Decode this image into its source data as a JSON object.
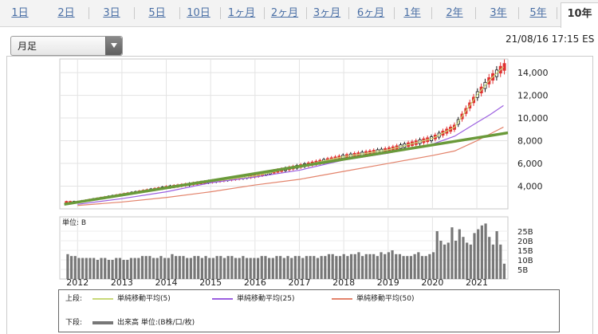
{
  "tabs": [
    {
      "label": "1日"
    },
    {
      "label": "2日"
    },
    {
      "label": "3日"
    },
    {
      "label": "5日"
    },
    {
      "label": "10日"
    },
    {
      "label": "1ヶ月"
    },
    {
      "label": "2ヶ月"
    },
    {
      "label": "3ヶ月"
    },
    {
      "label": "6ヶ月"
    },
    {
      "label": "1年"
    },
    {
      "label": "2年"
    },
    {
      "label": "3年"
    },
    {
      "label": "5年"
    },
    {
      "label": "10年"
    }
  ],
  "active_tab": "10年",
  "period_select": {
    "value": "月足"
  },
  "datetime": "21/08/16 17:15 ES",
  "legend": {
    "upper_label": "上段:",
    "lower_label": "下段:",
    "ma5": "単純移動平均(5)",
    "ma25": "単純移動平均(25)",
    "ma50": "単純移動平均(50)",
    "volume": "出来高 単位:(B株/口/枚)"
  },
  "colors": {
    "candle_up": "#e03131",
    "candle_down": "#1a1a1a",
    "ma5": "#c8d878",
    "ma25": "#9b5fe0",
    "ma50": "#e3836b",
    "trend": "#6a9a3a",
    "volume": "#777777"
  },
  "chart_data": [
    {
      "type": "candlestick",
      "title": "",
      "x": [
        "2012",
        "2013",
        "2014",
        "2015",
        "2016",
        "2017",
        "2018",
        "2019",
        "2020",
        "2021"
      ],
      "yticks": [
        4000,
        6000,
        8000,
        10000,
        12000,
        14000
      ],
      "ylim": [
        2000,
        15200
      ],
      "xlim": [
        2011.6,
        2021.7
      ],
      "grid": true,
      "series": [
        {
          "name": "単純移動平均(5)",
          "x": [
            2012,
            2014,
            2016,
            2018,
            2019,
            2020,
            2020.5,
            2021,
            2021.3,
            2021.6
          ],
          "values": [
            2600,
            3900,
            4900,
            6600,
            7200,
            8200,
            9200,
            12000,
            13400,
            14500
          ]
        },
        {
          "name": "単純移動平均(25)",
          "x": [
            2012,
            2013,
            2014,
            2015,
            2016,
            2017,
            2018,
            2019,
            2020,
            2020.5,
            2021,
            2021.3,
            2021.6
          ],
          "values": [
            2400,
            2900,
            3500,
            4300,
            4800,
            5400,
            6300,
            6900,
            7700,
            8400,
            9600,
            10300,
            11100
          ]
        },
        {
          "name": "単純移動平均(50)",
          "x": [
            2012,
            2013,
            2014,
            2015,
            2016,
            2017,
            2018,
            2019,
            2020,
            2020.5,
            2021,
            2021.3,
            2021.6
          ],
          "values": [
            2300,
            2600,
            3000,
            3500,
            4100,
            4600,
            5300,
            6000,
            6700,
            7100,
            8000,
            8600,
            9200
          ]
        },
        {
          "name": "trend",
          "x": [
            2011.7,
            2021.7
          ],
          "values": [
            2400,
            8700
          ]
        }
      ]
    },
    {
      "type": "bar",
      "title": "",
      "unit_label": "単位: B",
      "yticks": [
        "5B",
        "10B",
        "15B",
        "20B",
        "25B"
      ],
      "ytick_values": [
        5,
        10,
        15,
        20,
        25
      ],
      "ylim": [
        0,
        30
      ],
      "xlim": [
        2011.6,
        2021.7
      ],
      "values": [
        13,
        12,
        12,
        11,
        11,
        11,
        11,
        11,
        10,
        11,
        11,
        10,
        10,
        11,
        11,
        10,
        10,
        11,
        11,
        11,
        12,
        12,
        12,
        11,
        11,
        12,
        11,
        11,
        13,
        12,
        12,
        12,
        11,
        11,
        12,
        12,
        11,
        12,
        11,
        11,
        12,
        12,
        11,
        12,
        12,
        11,
        11,
        12,
        11,
        11,
        11,
        11,
        12,
        12,
        11,
        11,
        12,
        12,
        11,
        12,
        11,
        12,
        12,
        11,
        12,
        12,
        12,
        11,
        12,
        12,
        13,
        13,
        12,
        12,
        13,
        12,
        13,
        13,
        14,
        12,
        13,
        13,
        13,
        12,
        14,
        13,
        14,
        15,
        13,
        13,
        12,
        12,
        12,
        13,
        14,
        12,
        12,
        13,
        14,
        25,
        20,
        18,
        19,
        27,
        20,
        26,
        22,
        19,
        18,
        24,
        26,
        28,
        29,
        22,
        18,
        25,
        18,
        8
      ]
    }
  ]
}
